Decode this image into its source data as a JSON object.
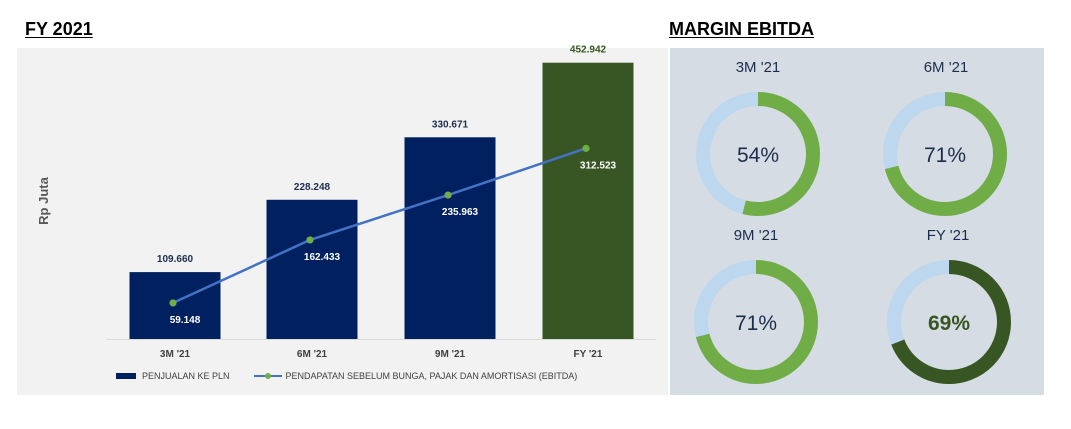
{
  "left_title": "FY 2021",
  "right_title": "MARGIN EBITDA",
  "colors": {
    "bar": "#002060",
    "bar_highlight": "#375623",
    "line": "#4472c4",
    "marker": "#70ad47",
    "donut_fill": "#70ad47",
    "donut_fill_highlight": "#375623",
    "donut_rest": "#bdd7ee"
  },
  "chart_data": [
    {
      "type": "bar",
      "title": "",
      "ylabel": "Rp Juta",
      "xlabel": "",
      "categories": [
        "3M '21",
        "6M '21",
        "9M '21",
        "FY '21"
      ],
      "ylim": [
        0,
        500
      ],
      "grid": false,
      "legend_position": "bottom",
      "series": [
        {
          "name": "PENJUALAN KE PLN",
          "type": "bar",
          "values": [
            109.66,
            228.248,
            330.671,
            452.942
          ],
          "labels": [
            "109.660",
            "228.248",
            "330.671",
            "452.942"
          ]
        },
        {
          "name": "PENDAPATAN SEBELUM BUNGA, PAJAK DAN AMORTISASI (EBITDA)",
          "type": "line",
          "values": [
            59.148,
            162.433,
            235.963,
            312.523
          ],
          "labels": [
            "59.148",
            "162.433",
            "235.963",
            "312.523"
          ]
        }
      ]
    },
    {
      "type": "pie",
      "title": "MARGIN EBITDA",
      "donuts": [
        {
          "label": "3M '21",
          "value": 54,
          "text": "54%"
        },
        {
          "label": "6M '21",
          "value": 71,
          "text": "71%"
        },
        {
          "label": "9M '21",
          "value": 71,
          "text": "71%"
        },
        {
          "label": "FY '21",
          "value": 69,
          "text": "69%"
        }
      ]
    }
  ]
}
